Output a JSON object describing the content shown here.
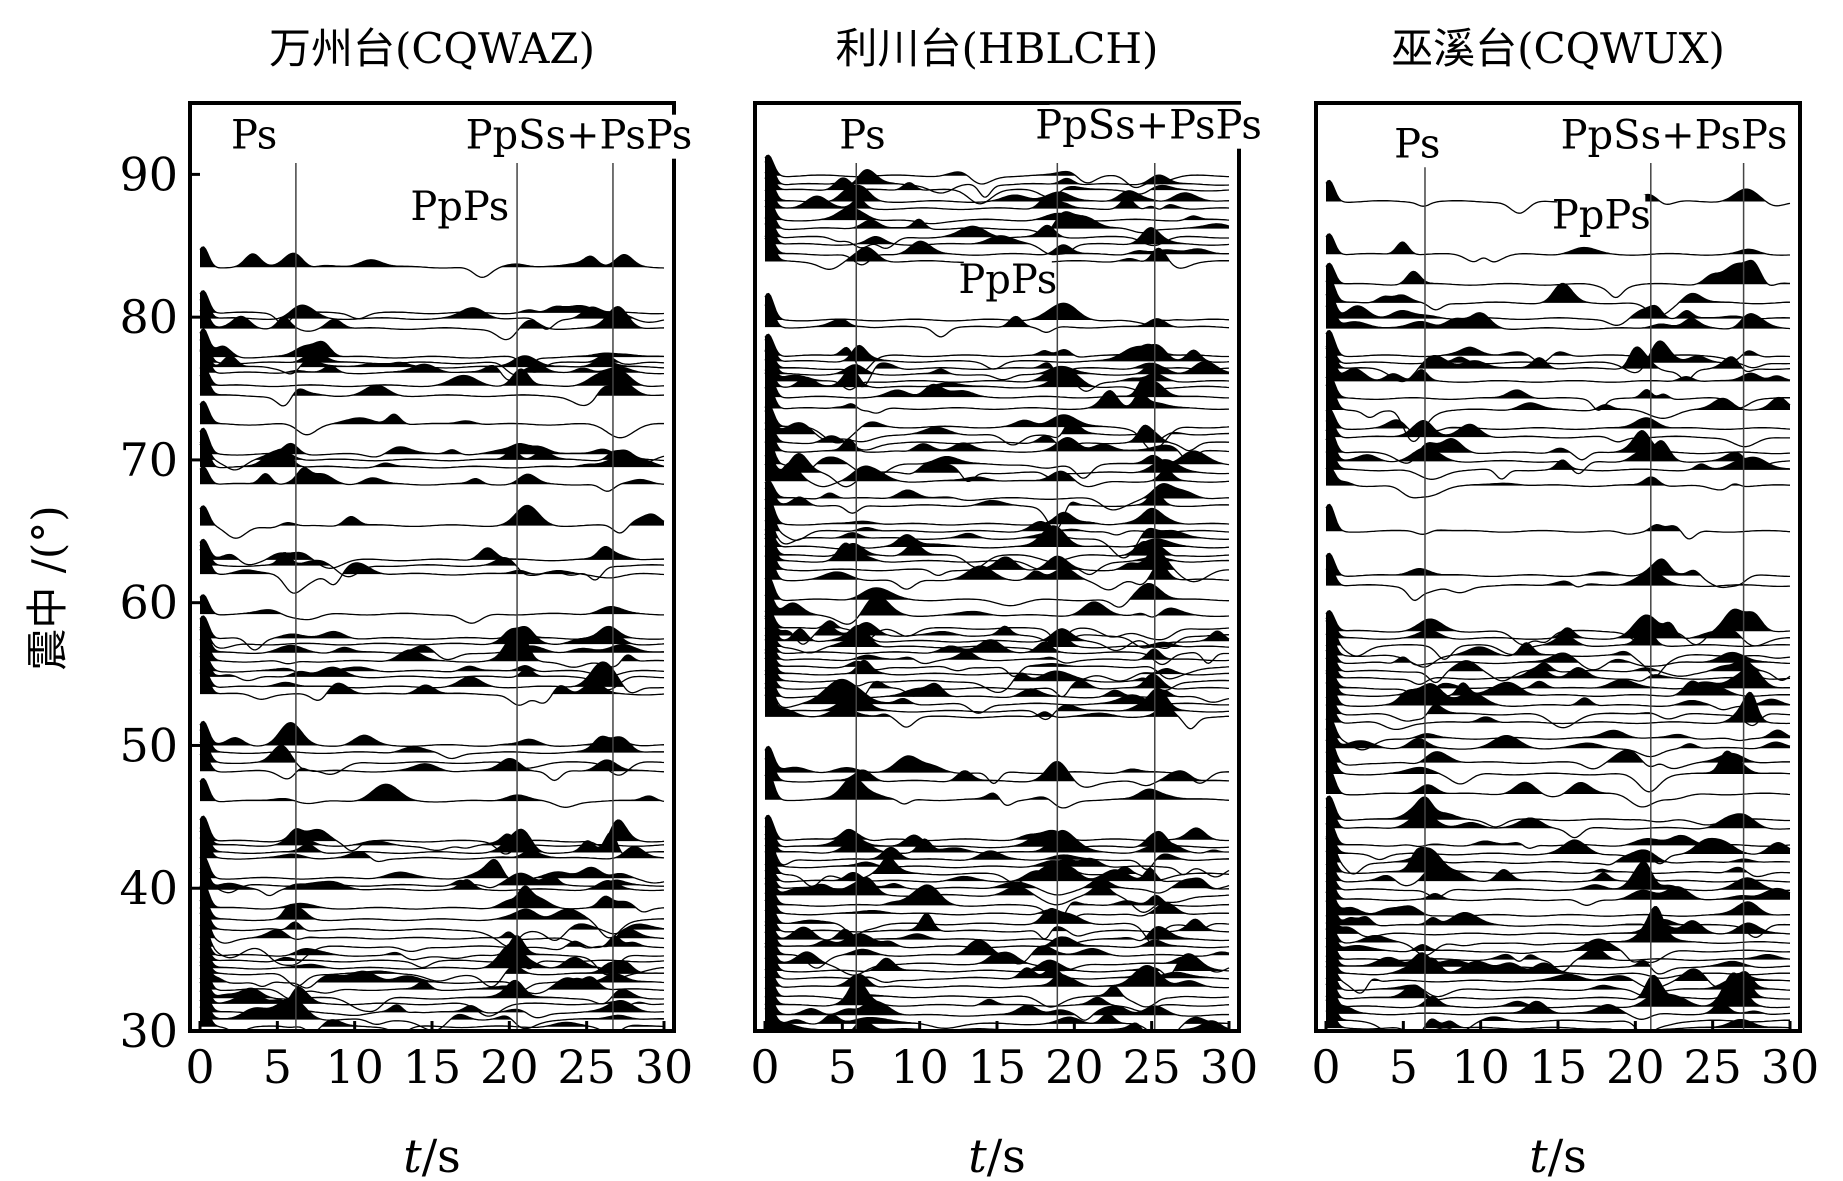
{
  "chart_data": {
    "type": "line",
    "ylabel": "震中 /(°)",
    "yticks": [
      "30",
      "40",
      "50",
      "60",
      "70",
      "80",
      "90"
    ],
    "ylim": [
      30,
      95
    ],
    "panels": [
      {
        "title": "万州台(CQWAZ)",
        "xlabel_var": "t",
        "xlabel_unit": "/s",
        "xticks": [
          "0",
          "5",
          "10",
          "15",
          "20",
          "25",
          "30"
        ],
        "xlim": [
          0,
          30
        ],
        "phase_labels": [
          {
            "text": "Ps",
            "t": 3.5,
            "y": 91.8
          },
          {
            "text": "PpSs+PsPs",
            "t": 24.5,
            "y": 91.8
          },
          {
            "text": "PpPs",
            "t": 16.8,
            "y": 86.8
          }
        ],
        "phase_lines": [
          6.2,
          20.5,
          26.7
        ],
        "distances": [
          83.5,
          80.3,
          79.9,
          79.2,
          77.2,
          76.8,
          76.5,
          76.1,
          75.2,
          74.5,
          72.5,
          70.4,
          70.0,
          69.5,
          68.3,
          65.4,
          63.0,
          62.6,
          62.0,
          59.2,
          57.5,
          57.1,
          56.5,
          55.9,
          55.2,
          54.8,
          54.1,
          53.6,
          50.0,
          49.5,
          48.8,
          48.2,
          46.1,
          43.3,
          43.0,
          42.5,
          42.1,
          40.7,
          40.2,
          39.9,
          38.6,
          37.8,
          37.1,
          36.5,
          35.9,
          35.3,
          34.9,
          34.4,
          34.0,
          33.4,
          32.9,
          32.3,
          31.9,
          31.3,
          30.8,
          30.3
        ]
      },
      {
        "title": "利川台(HBLCH)",
        "xlabel_var": "t",
        "xlabel_unit": "/s",
        "xticks": [
          "0",
          "5",
          "10",
          "15",
          "20",
          "25",
          "30"
        ],
        "xlim": [
          0,
          30
        ],
        "phase_labels": [
          {
            "text": "Ps",
            "t": 6.3,
            "y": 91.8
          },
          {
            "text": "PpSs+PsPs",
            "t": 24.8,
            "y": 92.5
          },
          {
            "text": "PpPs",
            "t": 15.7,
            "y": 81.7
          }
        ],
        "phase_lines": [
          5.9,
          18.9,
          25.2
        ],
        "distances": [
          89.9,
          89.3,
          88.9,
          88.1,
          87.6,
          86.8,
          86.2,
          85.6,
          85.1,
          84.4,
          83.9,
          79.8,
          79.3,
          77.3,
          76.9,
          76.4,
          76.0,
          75.5,
          75.1,
          74.4,
          73.6,
          72.3,
          71.8,
          71.2,
          70.6,
          69.7,
          69.1,
          68.5,
          67.3,
          66.8,
          65.5,
          65.0,
          64.5,
          63.9,
          63.3,
          62.9,
          62.3,
          61.6,
          60.2,
          59.1,
          58.2,
          57.7,
          57.3,
          56.9,
          56.5,
          56.0,
          55.5,
          55.0,
          54.5,
          54.0,
          53.4,
          52.9,
          52.4,
          52.0,
          48.1,
          47.5,
          46.2,
          43.4,
          42.9,
          42.5,
          42.0,
          41.5,
          41.0,
          40.5,
          40.0,
          39.5,
          38.8,
          38.2,
          37.5,
          37.0,
          36.4,
          35.9,
          35.3,
          34.7,
          34.2,
          33.7,
          33.1,
          32.4,
          31.8,
          31.1,
          30.5,
          30.1
        ]
      },
      {
        "title": "巫溪台(CQWUX)",
        "xlabel_var": "t",
        "xlabel_unit": "/s",
        "xticks": [
          "0",
          "5",
          "10",
          "15",
          "20",
          "25",
          "30"
        ],
        "xlim": [
          0,
          30
        ],
        "phase_labels": [
          {
            "text": "Ps",
            "t": 5.9,
            "y": 91.2
          },
          {
            "text": "PpSs+PsPs",
            "t": 22.5,
            "y": 91.8
          },
          {
            "text": "PpPs",
            "t": 17.8,
            "y": 86.2
          }
        ],
        "phase_lines": [
          6.4,
          21.0,
          27.0
        ],
        "distances": [
          88.1,
          84.4,
          82.3,
          81.0,
          79.9,
          79.2,
          77.3,
          76.8,
          76.4,
          75.5,
          74.3,
          73.5,
          72.2,
          71.6,
          70.5,
          69.9,
          69.3,
          68.2,
          65.0,
          61.9,
          61.2,
          58.0,
          57.5,
          57.0,
          56.3,
          55.8,
          55.2,
          54.7,
          54.0,
          53.5,
          52.8,
          52.2,
          51.6,
          50.5,
          49.8,
          48.8,
          48.0,
          46.6,
          44.8,
          44.2,
          43.0,
          42.4,
          41.8,
          41.1,
          40.5,
          39.9,
          39.2,
          38.1,
          37.4,
          36.8,
          36.2,
          35.6,
          35.0,
          34.5,
          34.0,
          33.5,
          32.9,
          32.3,
          31.7,
          31.2,
          30.7,
          30.2
        ]
      }
    ]
  }
}
